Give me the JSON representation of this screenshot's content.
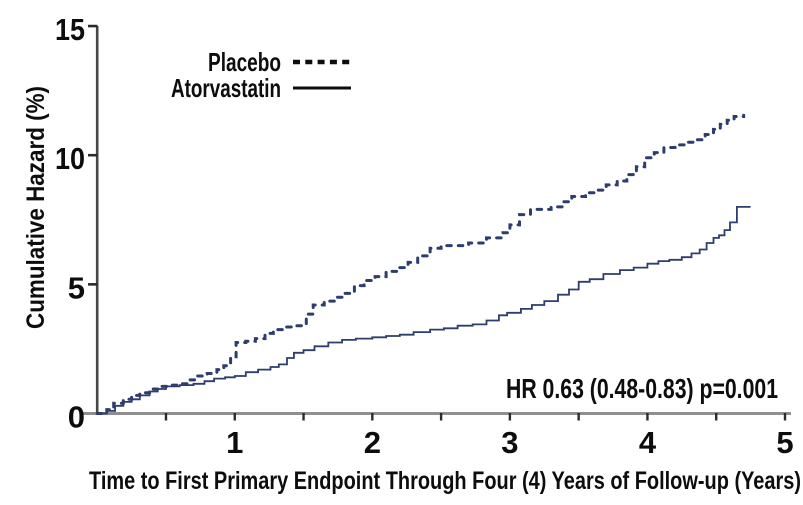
{
  "chart_data": {
    "type": "line",
    "subtype": "step-function-cumulative-hazard",
    "title": "",
    "xlabel": "Time to First Primary Endpoint Through Four (4) Years of Follow-up (Years)",
    "ylabel": "Cumulative Hazard (%)",
    "xlim": [
      0,
      5
    ],
    "ylim": [
      0,
      15
    ],
    "x_ticks_major": [
      1,
      2,
      3,
      4,
      5
    ],
    "x_ticks_minor": [
      0.5,
      1.5,
      2.5,
      3.5,
      4.5
    ],
    "y_ticks": [
      0,
      5,
      10,
      15
    ],
    "grid": false,
    "legend_position": "inside-top-left",
    "annotation": "HR 0.63 (0.48-0.83)  p=0.001",
    "series": [
      {
        "name": "Placebo",
        "style": "dashed",
        "color": "#2e3c6e",
        "points": [
          [
            0,
            0
          ],
          [
            0.07,
            0.15
          ],
          [
            0.12,
            0.4
          ],
          [
            0.19,
            0.55
          ],
          [
            0.25,
            0.7
          ],
          [
            0.31,
            0.8
          ],
          [
            0.38,
            0.95
          ],
          [
            0.44,
            1.05
          ],
          [
            0.52,
            1.1
          ],
          [
            0.6,
            1.15
          ],
          [
            0.66,
            1.3
          ],
          [
            0.72,
            1.45
          ],
          [
            0.8,
            1.55
          ],
          [
            0.87,
            1.7
          ],
          [
            0.92,
            1.85
          ],
          [
            0.97,
            2.2
          ],
          [
            1.01,
            2.75
          ],
          [
            1.08,
            2.8
          ],
          [
            1.15,
            2.9
          ],
          [
            1.22,
            3.1
          ],
          [
            1.28,
            3.25
          ],
          [
            1.36,
            3.35
          ],
          [
            1.45,
            3.4
          ],
          [
            1.52,
            3.85
          ],
          [
            1.57,
            4.2
          ],
          [
            1.65,
            4.35
          ],
          [
            1.73,
            4.5
          ],
          [
            1.8,
            4.65
          ],
          [
            1.87,
            4.95
          ],
          [
            1.94,
            5.15
          ],
          [
            2.02,
            5.3
          ],
          [
            2.1,
            5.5
          ],
          [
            2.18,
            5.65
          ],
          [
            2.26,
            5.85
          ],
          [
            2.33,
            6.1
          ],
          [
            2.42,
            6.4
          ],
          [
            2.5,
            6.5
          ],
          [
            2.6,
            6.5
          ],
          [
            2.7,
            6.6
          ],
          [
            2.83,
            6.8
          ],
          [
            2.95,
            7.0
          ],
          [
            3.0,
            7.3
          ],
          [
            3.07,
            7.7
          ],
          [
            3.15,
            7.9
          ],
          [
            3.3,
            8.0
          ],
          [
            3.38,
            8.2
          ],
          [
            3.45,
            8.4
          ],
          [
            3.55,
            8.55
          ],
          [
            3.62,
            8.65
          ],
          [
            3.7,
            8.85
          ],
          [
            3.78,
            9.0
          ],
          [
            3.85,
            9.25
          ],
          [
            3.92,
            9.55
          ],
          [
            3.98,
            9.9
          ],
          [
            4.05,
            10.1
          ],
          [
            4.12,
            10.3
          ],
          [
            4.2,
            10.4
          ],
          [
            4.28,
            10.5
          ],
          [
            4.35,
            10.6
          ],
          [
            4.42,
            10.8
          ],
          [
            4.48,
            11.0
          ],
          [
            4.53,
            11.2
          ],
          [
            4.58,
            11.35
          ],
          [
            4.63,
            11.5
          ],
          [
            4.7,
            11.55
          ]
        ]
      },
      {
        "name": "Atorvastatin",
        "style": "solid",
        "color": "#2e3c6e",
        "points": [
          [
            0,
            0
          ],
          [
            0.07,
            0.1
          ],
          [
            0.13,
            0.3
          ],
          [
            0.19,
            0.45
          ],
          [
            0.25,
            0.55
          ],
          [
            0.31,
            0.7
          ],
          [
            0.38,
            0.85
          ],
          [
            0.44,
            0.95
          ],
          [
            0.5,
            1.05
          ],
          [
            0.6,
            1.1
          ],
          [
            0.7,
            1.15
          ],
          [
            0.78,
            1.25
          ],
          [
            0.85,
            1.35
          ],
          [
            0.93,
            1.4
          ],
          [
            1.0,
            1.45
          ],
          [
            1.08,
            1.6
          ],
          [
            1.17,
            1.7
          ],
          [
            1.26,
            1.8
          ],
          [
            1.32,
            1.9
          ],
          [
            1.38,
            2.15
          ],
          [
            1.43,
            2.35
          ],
          [
            1.5,
            2.45
          ],
          [
            1.58,
            2.6
          ],
          [
            1.68,
            2.75
          ],
          [
            1.78,
            2.85
          ],
          [
            1.88,
            2.9
          ],
          [
            2.0,
            2.95
          ],
          [
            2.1,
            3.0
          ],
          [
            2.2,
            3.05
          ],
          [
            2.3,
            3.15
          ],
          [
            2.42,
            3.25
          ],
          [
            2.52,
            3.3
          ],
          [
            2.62,
            3.4
          ],
          [
            2.73,
            3.45
          ],
          [
            2.83,
            3.6
          ],
          [
            2.92,
            3.8
          ],
          [
            2.98,
            3.9
          ],
          [
            3.08,
            4.05
          ],
          [
            3.16,
            4.2
          ],
          [
            3.25,
            4.35
          ],
          [
            3.35,
            4.6
          ],
          [
            3.43,
            4.8
          ],
          [
            3.5,
            5.1
          ],
          [
            3.58,
            5.2
          ],
          [
            3.68,
            5.4
          ],
          [
            3.8,
            5.55
          ],
          [
            3.9,
            5.65
          ],
          [
            4.0,
            5.8
          ],
          [
            4.08,
            5.9
          ],
          [
            4.16,
            5.95
          ],
          [
            4.25,
            6.05
          ],
          [
            4.32,
            6.2
          ],
          [
            4.38,
            6.35
          ],
          [
            4.43,
            6.6
          ],
          [
            4.48,
            6.8
          ],
          [
            4.52,
            6.9
          ],
          [
            4.56,
            7.1
          ],
          [
            4.6,
            7.4
          ],
          [
            4.65,
            8.0
          ],
          [
            4.75,
            8.0
          ]
        ]
      }
    ]
  },
  "colors": {
    "curve_navy": "#2e3c6e",
    "x_axis_line": "#8f8f8f",
    "y_axis_line": "#474747",
    "tick": "#2b2b2b",
    "text": "#0d0d0d",
    "background": "#ffffff"
  }
}
